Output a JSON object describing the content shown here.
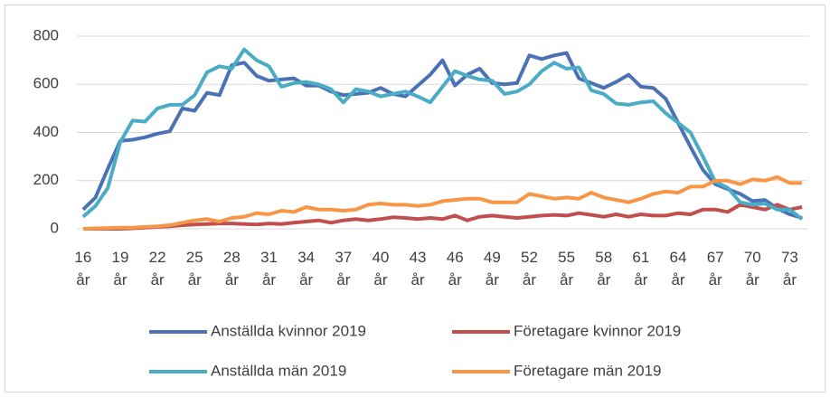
{
  "chart_data": {
    "type": "line",
    "categories": [
      "16 år",
      null,
      null,
      "19 år",
      null,
      null,
      "22 år",
      null,
      null,
      "25 år",
      null,
      null,
      "28 år",
      null,
      null,
      "31 år",
      null,
      null,
      "34 år",
      null,
      null,
      "37 år",
      null,
      null,
      "40 år",
      null,
      null,
      "43 år",
      null,
      null,
      "46 år",
      null,
      null,
      "49 år",
      null,
      null,
      "52 år",
      null,
      null,
      "55 år",
      null,
      null,
      "58 år",
      null,
      null,
      "61 år",
      null,
      null,
      "64 år",
      null,
      null,
      "67 år",
      null,
      null,
      "70 år",
      null,
      null,
      "73 år",
      null
    ],
    "series": [
      {
        "name": "Anställda kvinnor 2019",
        "color": "#4a72b5",
        "values": [
          80,
          130,
          250,
          365,
          370,
          380,
          395,
          405,
          500,
          490,
          565,
          555,
          680,
          690,
          635,
          615,
          620,
          625,
          595,
          595,
          570,
          555,
          560,
          565,
          585,
          560,
          550,
          595,
          640,
          700,
          595,
          640,
          665,
          605,
          600,
          605,
          720,
          705,
          720,
          730,
          625,
          605,
          585,
          610,
          640,
          590,
          585,
          540,
          440,
          340,
          245,
          185,
          165,
          145,
          115,
          120,
          85,
          60,
          45
        ]
      },
      {
        "name": "Företagare kvinnor 2019",
        "color": "#c0504d",
        "values": [
          0,
          0,
          0,
          0,
          2,
          5,
          8,
          10,
          15,
          18,
          20,
          22,
          22,
          20,
          18,
          22,
          20,
          25,
          30,
          35,
          25,
          35,
          40,
          35,
          40,
          48,
          45,
          40,
          45,
          40,
          55,
          35,
          50,
          55,
          50,
          45,
          50,
          55,
          58,
          55,
          65,
          58,
          50,
          60,
          50,
          60,
          55,
          55,
          65,
          60,
          80,
          80,
          70,
          100,
          90,
          80,
          100,
          80,
          90
        ]
      },
      {
        "name": "Anställda män 2019",
        "color": "#4bacc6",
        "values": [
          50,
          95,
          170,
          360,
          450,
          445,
          500,
          515,
          515,
          555,
          650,
          675,
          665,
          745,
          700,
          675,
          590,
          605,
          610,
          600,
          580,
          525,
          580,
          570,
          550,
          560,
          570,
          550,
          525,
          590,
          655,
          635,
          620,
          615,
          560,
          570,
          600,
          655,
          690,
          665,
          670,
          575,
          560,
          520,
          515,
          525,
          530,
          480,
          440,
          400,
          300,
          195,
          170,
          110,
          100,
          105,
          80,
          80,
          40
        ]
      },
      {
        "name": "Företagare män 2019",
        "color": "#f79646",
        "values": [
          0,
          2,
          3,
          5,
          5,
          8,
          10,
          15,
          25,
          35,
          40,
          30,
          45,
          50,
          65,
          60,
          75,
          70,
          90,
          80,
          80,
          75,
          80,
          100,
          105,
          100,
          100,
          95,
          100,
          115,
          120,
          125,
          125,
          110,
          110,
          110,
          145,
          135,
          125,
          130,
          125,
          150,
          130,
          120,
          110,
          125,
          145,
          155,
          150,
          175,
          175,
          200,
          200,
          185,
          205,
          200,
          215,
          190,
          190
        ]
      }
    ],
    "ylim": [
      0,
      800
    ],
    "yticks": [
      0,
      200,
      400,
      600,
      800
    ],
    "grid": true
  }
}
